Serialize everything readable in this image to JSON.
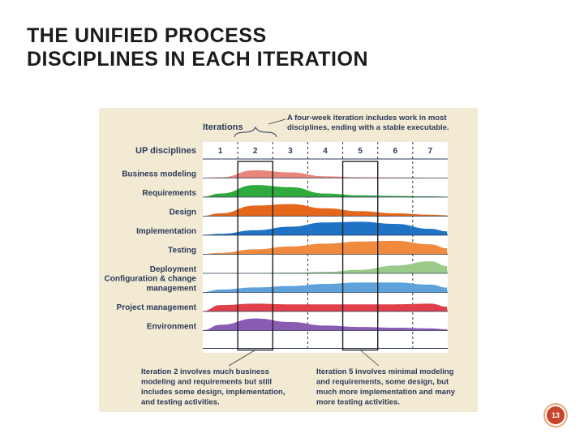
{
  "slide": {
    "title_line1": "THE UNIFIED PROCESS",
    "title_line2": "DISCIPLINES IN EACH ITERATION",
    "page_number": "13"
  },
  "diagram": {
    "iterations_label": "Iterations",
    "disciplines_header": "UP disciplines",
    "iterations": [
      "1",
      "2",
      "3",
      "4",
      "5",
      "6",
      "7"
    ],
    "disciplines": [
      {
        "label": [
          "Business modeling"
        ],
        "color": "#e8867c",
        "profile": [
          0.05,
          0.55,
          0.4,
          0.12,
          0.05,
          0.04,
          0.03
        ]
      },
      {
        "label": [
          "Requirements"
        ],
        "color": "#2faa3c",
        "profile": [
          0.25,
          0.85,
          0.7,
          0.25,
          0.12,
          0.08,
          0.05
        ]
      },
      {
        "label": [
          "Design"
        ],
        "color": "#e5671b",
        "profile": [
          0.2,
          0.75,
          0.85,
          0.55,
          0.35,
          0.2,
          0.1
        ]
      },
      {
        "label": [
          "Implementation"
        ],
        "color": "#1f73c4",
        "profile": [
          0.1,
          0.35,
          0.6,
          0.9,
          0.95,
          0.8,
          0.45
        ]
      },
      {
        "label": [
          "Testing"
        ],
        "color": "#f08a3c",
        "profile": [
          0.1,
          0.35,
          0.55,
          0.75,
          0.9,
          0.95,
          0.7
        ]
      },
      {
        "label": [
          "Deployment"
        ],
        "color": "#9acb8a",
        "profile": [
          0.0,
          0.03,
          0.05,
          0.1,
          0.25,
          0.55,
          0.85
        ]
      },
      {
        "label": [
          "Configuration & change",
          "management"
        ],
        "color": "#5ea2db",
        "profile": [
          0.2,
          0.35,
          0.45,
          0.6,
          0.7,
          0.7,
          0.55
        ]
      },
      {
        "label": [
          "Project management"
        ],
        "color": "#e0404a",
        "profile": [
          0.45,
          0.55,
          0.5,
          0.5,
          0.5,
          0.5,
          0.55
        ]
      },
      {
        "label": [
          "Environment"
        ],
        "color": "#8a5bb3",
        "profile": [
          0.4,
          0.85,
          0.6,
          0.35,
          0.25,
          0.2,
          0.15
        ]
      }
    ],
    "callout_top": [
      "A four-week iteration includes work in most",
      "disciplines, ending with a stable executable."
    ],
    "callout_left": [
      "Iteration 2 involves much business",
      "modeling and requirements but still",
      "includes some design, implementation,",
      "and testing activities."
    ],
    "callout_right": [
      "Iteration 5 involves minimal modeling",
      "and requirements, some design, but",
      "much more implementation and many",
      "more testing activities."
    ],
    "highlighted_iterations": [
      "2",
      "5"
    ]
  }
}
